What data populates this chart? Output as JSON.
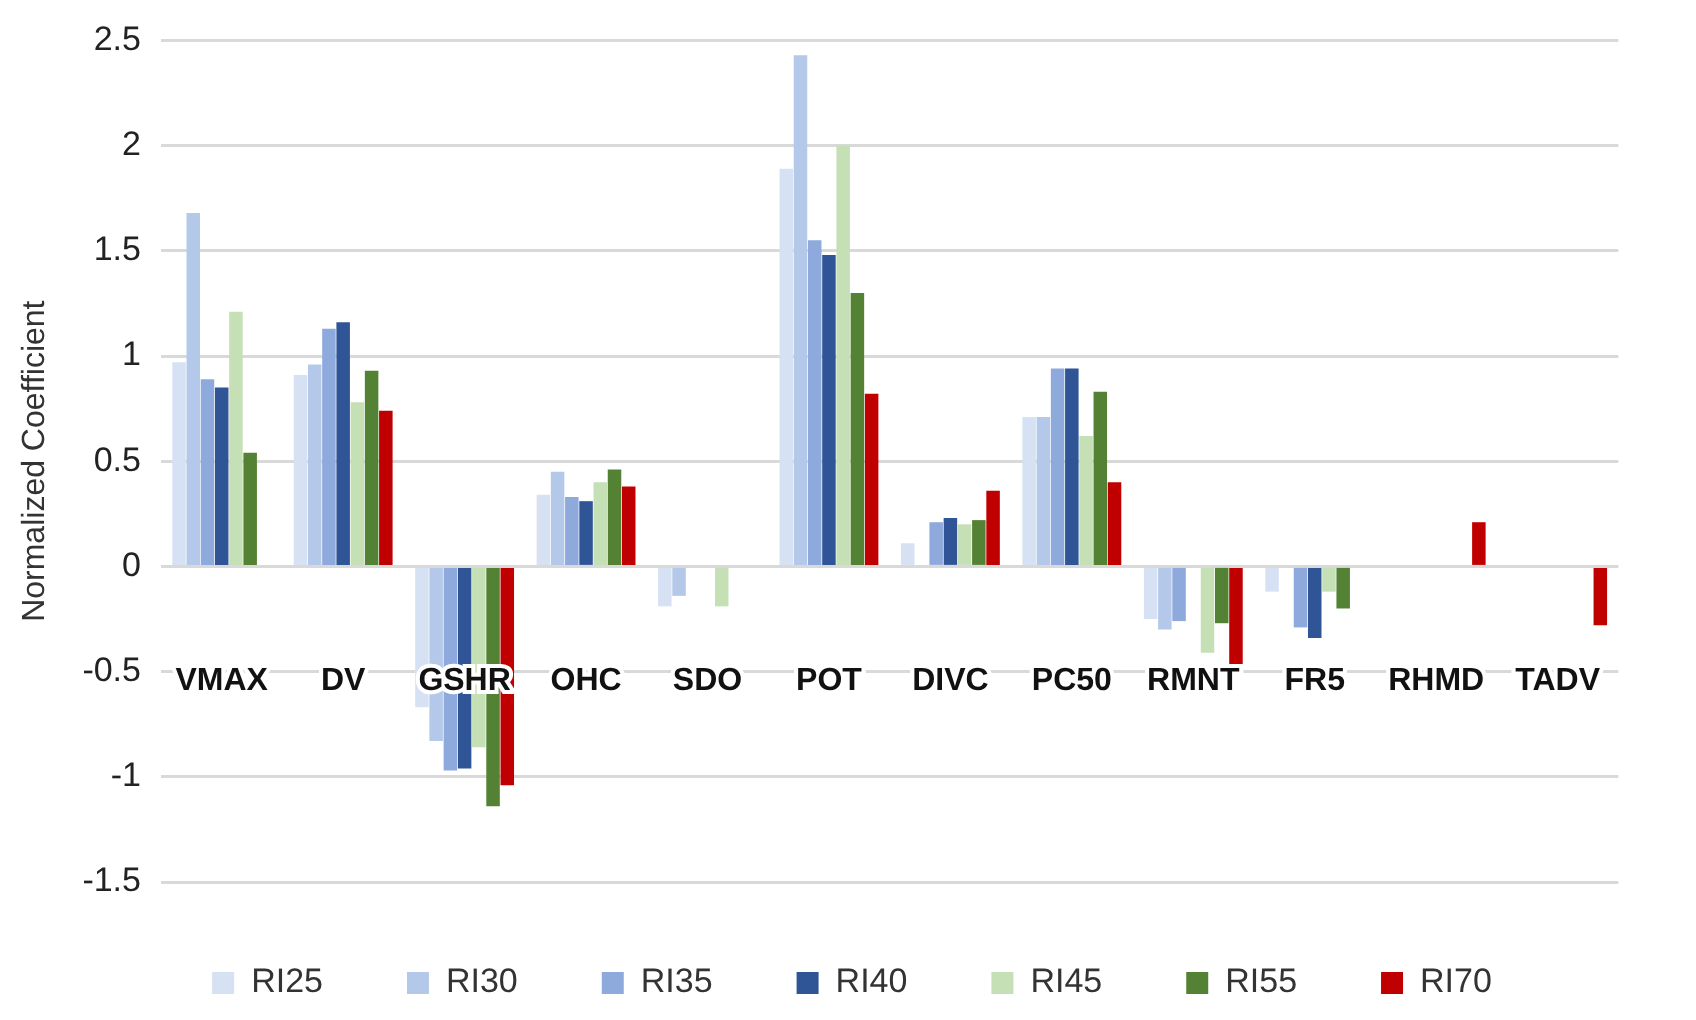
{
  "chart_data": {
    "type": "bar",
    "ylabel": "Normalized Coefficient",
    "categories": [
      "VMAX",
      "DV",
      "GSHR",
      "OHC",
      "SDO",
      "POT",
      "DIVC",
      "PC50",
      "RMNT",
      "FR5",
      "RHMD",
      "TADV"
    ],
    "series": [
      {
        "name": "RI25",
        "color": "#d6e2f3",
        "values": [
          0.97,
          0.91,
          -0.67,
          0.34,
          -0.19,
          1.89,
          0.11,
          0.71,
          -0.25,
          -0.12,
          null,
          null
        ]
      },
      {
        "name": "RI30",
        "color": "#b4c9ea",
        "values": [
          1.68,
          0.96,
          -0.83,
          0.45,
          -0.14,
          2.43,
          null,
          0.71,
          -0.3,
          null,
          null,
          null
        ]
      },
      {
        "name": "RI35",
        "color": "#8eaadc",
        "values": [
          0.89,
          1.13,
          -0.97,
          0.33,
          null,
          1.55,
          0.21,
          0.94,
          -0.26,
          -0.29,
          null,
          null
        ]
      },
      {
        "name": "RI40",
        "color": "#2f5597",
        "values": [
          0.85,
          1.16,
          -0.96,
          0.31,
          null,
          1.48,
          0.23,
          0.94,
          null,
          -0.34,
          null,
          null
        ]
      },
      {
        "name": "RI45",
        "color": "#c5e0b4",
        "values": [
          1.21,
          0.78,
          -0.86,
          0.4,
          -0.19,
          2.0,
          0.2,
          0.62,
          -0.41,
          -0.12,
          null,
          null
        ]
      },
      {
        "name": "RI55",
        "color": "#548235",
        "values": [
          0.54,
          0.93,
          -1.14,
          0.46,
          null,
          1.3,
          0.22,
          0.83,
          -0.27,
          -0.2,
          null,
          null
        ]
      },
      {
        "name": "RI70",
        "color": "#c00000",
        "values": [
          null,
          0.74,
          -1.04,
          0.38,
          null,
          0.82,
          0.36,
          0.4,
          -0.49,
          null,
          0.21,
          -0.28
        ]
      }
    ],
    "ylim": [
      -1.5,
      2.5
    ],
    "yticks": [
      -1.5,
      -1,
      -0.5,
      0,
      0.5,
      1,
      1.5,
      2,
      2.5
    ],
    "grid": "y",
    "legend": "bottom"
  }
}
